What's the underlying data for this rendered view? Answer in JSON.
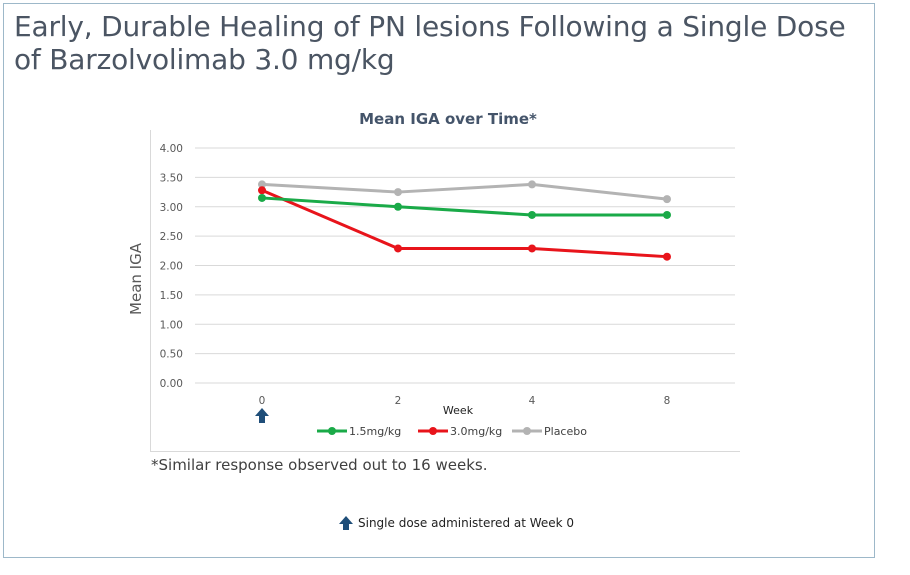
{
  "slide": {
    "title": "Early, Durable Healing of PN lesions Following a Single Dose of Barzolvolimab 3.0 mg/kg",
    "footnote": "*Similar response observed out to 16 weeks.",
    "dose_note": "Single dose administered at Week 0"
  },
  "colors": {
    "series_1": "#1aaa48",
    "series_2": "#e8141b",
    "series_3": "#b3b3b3",
    "arrow": "#1f4e79"
  },
  "icons": {
    "dose_arrow": "up-arrow-icon"
  },
  "chart_data": {
    "type": "line",
    "title": "Mean IGA over Time*",
    "xlabel": "Week",
    "ylabel": "Mean IGA",
    "categories": [
      "0",
      "2",
      "4",
      "8"
    ],
    "ylim": [
      0,
      4
    ],
    "yticks": [
      "4.00",
      "3.50",
      "3.00",
      "2.50",
      "2.00",
      "1.50",
      "1.00",
      "0.50",
      "0.00"
    ],
    "grid": true,
    "legend_position": "bottom",
    "series": [
      {
        "name": "1.5mg/kg",
        "values": [
          3.15,
          3.0,
          2.86,
          2.86
        ]
      },
      {
        "name": "3.0mg/kg",
        "values": [
          3.28,
          2.29,
          2.29,
          2.15
        ]
      },
      {
        "name": "Placebo",
        "values": [
          3.38,
          3.25,
          3.38,
          3.13
        ]
      }
    ]
  }
}
